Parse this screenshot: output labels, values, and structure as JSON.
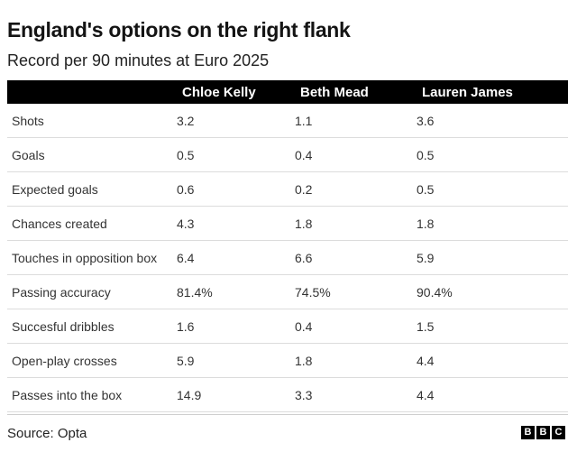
{
  "chart_data": {
    "type": "table",
    "title": "England's options on the right flank",
    "subtitle": "Record per 90 minutes at Euro 2025",
    "columns": [
      "",
      "Chloe Kelly",
      "Beth Mead",
      "Lauren James"
    ],
    "rows": [
      {
        "metric": "Shots",
        "values": [
          "3.2",
          "1.1",
          "3.6"
        ]
      },
      {
        "metric": "Goals",
        "values": [
          "0.5",
          "0.4",
          "0.5"
        ]
      },
      {
        "metric": "Expected goals",
        "values": [
          "0.6",
          "0.2",
          "0.5"
        ]
      },
      {
        "metric": "Chances created",
        "values": [
          "4.3",
          "1.8",
          "1.8"
        ]
      },
      {
        "metric": "Touches in opposition box",
        "values": [
          "6.4",
          "6.6",
          "5.9"
        ]
      },
      {
        "metric": "Passing accuracy",
        "values": [
          "81.4%",
          "74.5%",
          "90.4%"
        ]
      },
      {
        "metric": "Succesful dribbles",
        "values": [
          "1.6",
          "0.4",
          "1.5"
        ]
      },
      {
        "metric": "Open-play crosses",
        "values": [
          "5.9",
          "1.8",
          "4.4"
        ]
      },
      {
        "metric": "Passes into the box",
        "values": [
          "14.9",
          "3.3",
          "4.4"
        ]
      }
    ],
    "source": "Source: Opta",
    "logo_letters": [
      "B",
      "B",
      "C"
    ]
  }
}
